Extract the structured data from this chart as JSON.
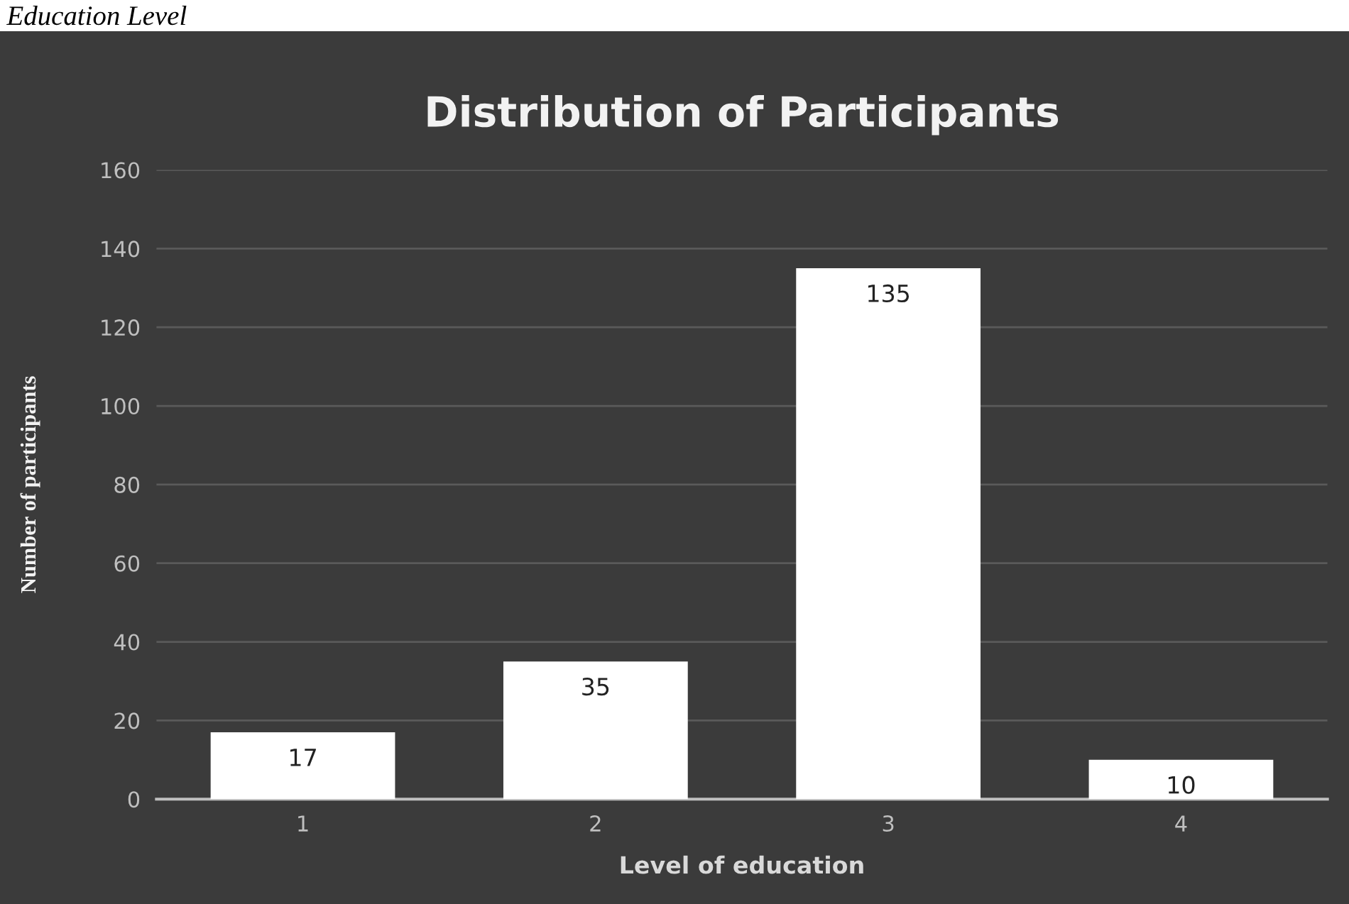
{
  "chart_data": {
    "type": "bar",
    "title": "Distribution of Participants",
    "xlabel": "Level of education",
    "ylabel": "Number of participants",
    "annotations": [
      "Education Level"
    ],
    "categories": [
      "1",
      "2",
      "3",
      "4"
    ],
    "values": [
      17,
      35,
      135,
      10
    ],
    "color": "#ffffff",
    "ylim": [
      0,
      160
    ],
    "yticks": [
      0,
      20,
      40,
      60,
      80,
      100,
      120,
      140,
      160
    ],
    "grid": "y",
    "data_labels": true
  }
}
